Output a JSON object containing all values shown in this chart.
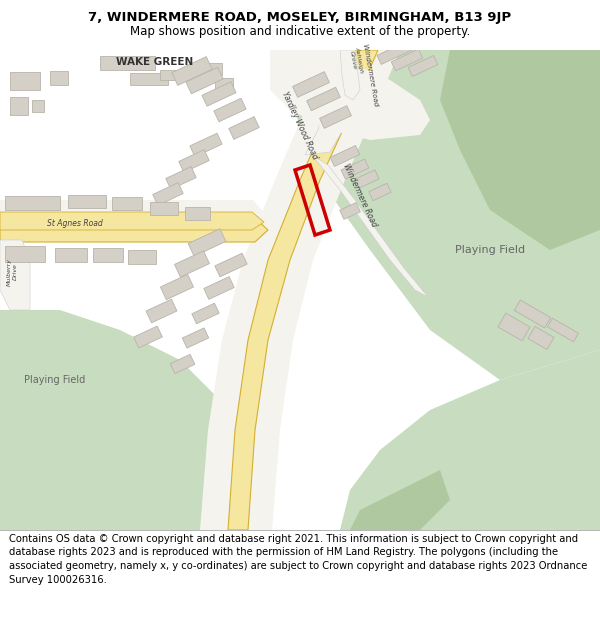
{
  "title_line1": "7, WINDERMERE ROAD, MOSELEY, BIRMINGHAM, B13 9JP",
  "title_line2": "Map shows position and indicative extent of the property.",
  "footer_text": "Contains OS data © Crown copyright and database right 2021. This information is subject to Crown copyright and database rights 2023 and is reproduced with the permission of HM Land Registry. The polygons (including the associated geometry, namely x, y co-ordinates) are subject to Crown copyright and database rights 2023 Ordnance Survey 100026316.",
  "title_fontsize": 9.5,
  "footer_fontsize": 7.5,
  "map_bg": "#ffffff",
  "green_color": "#c8ddc0",
  "green_dark": "#b0c8a0",
  "road_yellow": "#f5e6a0",
  "road_yellow_edge": "#d4b030",
  "road_white": "#f0ede8",
  "building_color": "#d4d0c8",
  "building_edge": "#b8b4aa"
}
